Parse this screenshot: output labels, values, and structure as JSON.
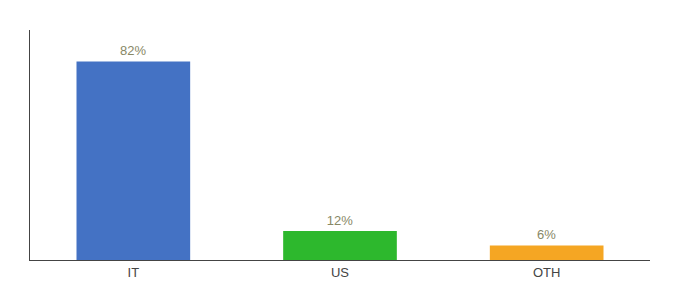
{
  "chart_data": {
    "type": "bar",
    "categories": [
      "IT",
      "US",
      "OTH"
    ],
    "values": [
      82,
      12,
      6
    ],
    "value_labels": [
      "82%",
      "12%",
      "6%"
    ],
    "colors": [
      "#4472c4",
      "#2db82d",
      "#f5a623"
    ],
    "ylim": [
      0,
      95
    ],
    "data_labels": true,
    "tick_labels": "x",
    "grid": false
  }
}
